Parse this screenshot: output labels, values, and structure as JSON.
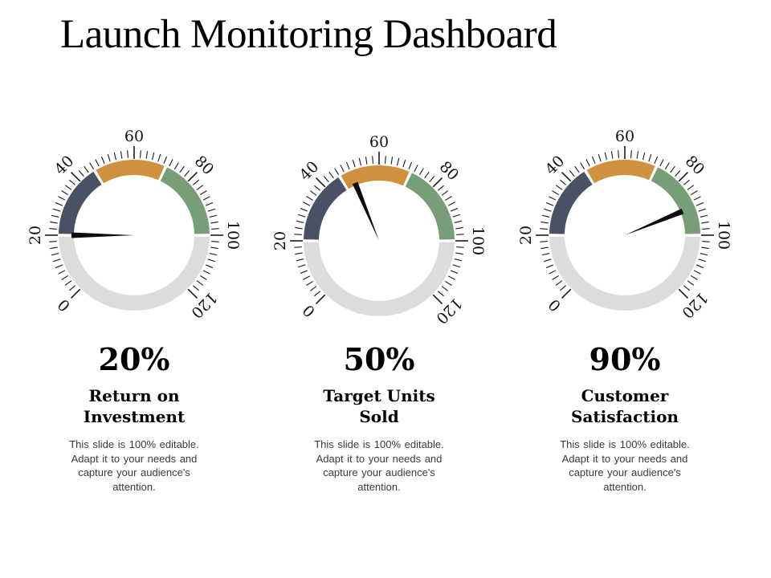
{
  "title": "Launch Monitoring Dashboard",
  "gauge_scale": {
    "min": 0,
    "max": 120,
    "minor_step": 2,
    "major_step": 20,
    "start_angle_deg": 225,
    "end_angle_deg": -45,
    "major_tick_labels": [
      "0",
      "20",
      "40",
      "60",
      "80",
      "100",
      "120"
    ]
  },
  "gauge_bands": [
    {
      "name": "slate-band",
      "from": 20,
      "to": 46,
      "color": "#485264"
    },
    {
      "name": "orange-band",
      "from": 46,
      "to": 71,
      "color": "#d0913f"
    },
    {
      "name": "green-band",
      "from": 71,
      "to": 100,
      "color": "#789d79"
    }
  ],
  "gauge_colors": {
    "track": "#dcdcdc",
    "needle": "#0d0d0d",
    "tick": "#1a1a1a",
    "tick_label": "#111111"
  },
  "chart_data": [
    {
      "type": "gauge",
      "metric": "Return on Investment",
      "metric_lines": [
        "Return on",
        "Investment"
      ],
      "display_value": "20%",
      "value_percent": 20,
      "needle_value": 20,
      "scale_min": 0,
      "scale_max": 120,
      "description": "This slide is 100% editable. Adapt it to your needs and capture your audience's attention.",
      "description_lines": [
        "This slide is 100% editable.",
        "Adapt it to your needs and",
        "capture your audience's",
        "attention."
      ]
    },
    {
      "type": "gauge",
      "metric": "Target Units Sold",
      "metric_lines": [
        "Target Units",
        "Sold"
      ],
      "display_value": "50%",
      "value_percent": 50,
      "needle_value": 50,
      "scale_min": 0,
      "scale_max": 120,
      "description": "This slide is 100% editable. Adapt it to your needs and capture your audience's attention.",
      "description_lines": [
        "This slide is 100% editable.",
        "Adapt it to your needs and",
        "capture your audience's",
        "attention."
      ]
    },
    {
      "type": "gauge",
      "metric": "Customer Satisfaction",
      "metric_lines": [
        "Customer",
        "Satisfaction"
      ],
      "display_value": "90%",
      "value_percent": 90,
      "needle_value": 90,
      "scale_min": 0,
      "scale_max": 120,
      "description": "This slide is 100% editable. Adapt it to your needs and capture your audience's attention.",
      "description_lines": [
        "This slide is 100% editable.",
        "Adapt it to your needs and",
        "capture your audience's",
        "attention."
      ]
    }
  ]
}
